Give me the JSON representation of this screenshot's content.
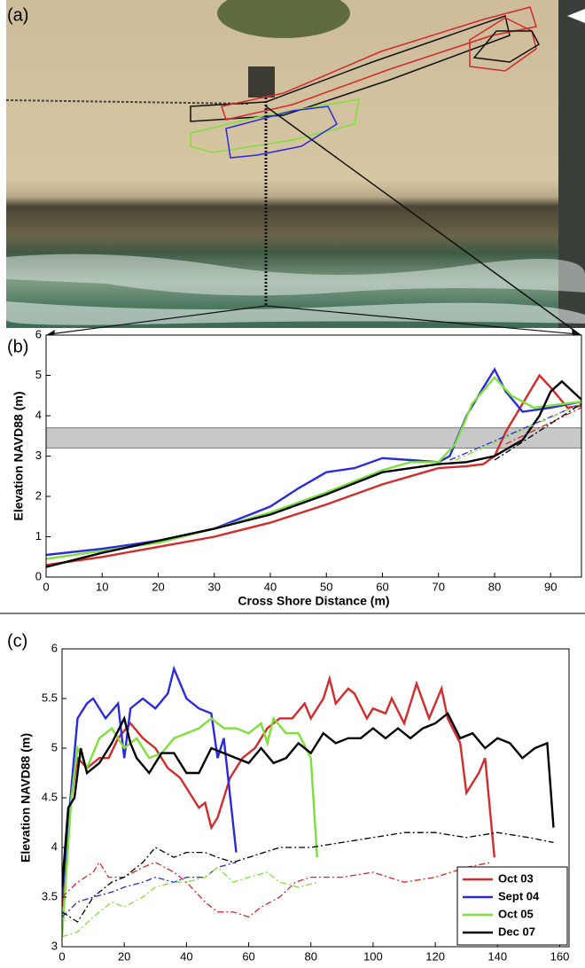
{
  "chart_data": [
    {
      "type": "image",
      "panel_label": "(a)"
    },
    {
      "type": "line",
      "panel_label": "(b)",
      "y_label": "Elevation NAVD88 (m)",
      "x_label": "Cross Shore Distance (m)",
      "xlim": [
        0,
        95.5
      ],
      "ylim": [
        0,
        6
      ],
      "xticks": [
        0,
        10,
        20,
        30,
        40,
        50,
        60,
        70,
        80,
        90
      ],
      "yticks": [
        0,
        1,
        2,
        3,
        4,
        5,
        6
      ],
      "band": [
        3.2,
        3.7
      ],
      "band_color": "#c8c8c8",
      "series": [
        {
          "color": "#d42a2a",
          "dash": false,
          "x": [
            0,
            10,
            20,
            30,
            40,
            50,
            60,
            70,
            75,
            78,
            80,
            82,
            85,
            88,
            90,
            93,
            95.5
          ],
          "values": [
            0.3,
            0.5,
            0.75,
            1.0,
            1.35,
            1.8,
            2.3,
            2.7,
            2.75,
            2.8,
            3.0,
            3.6,
            4.3,
            5.0,
            4.7,
            4.2,
            4.25
          ]
        },
        {
          "color": "#2a2ae0",
          "dash": false,
          "x": [
            0,
            10,
            20,
            30,
            40,
            45,
            50,
            55,
            60,
            65,
            70,
            72,
            75,
            78,
            80,
            82,
            85,
            90,
            95.5
          ],
          "values": [
            0.55,
            0.7,
            0.9,
            1.2,
            1.75,
            2.2,
            2.6,
            2.7,
            2.95,
            2.9,
            2.85,
            3.0,
            4.0,
            4.7,
            5.15,
            4.6,
            4.1,
            4.2,
            4.35
          ]
        },
        {
          "color": "#7ee03a",
          "dash": false,
          "x": [
            0,
            10,
            20,
            30,
            40,
            45,
            50,
            60,
            65,
            70,
            73,
            76,
            80,
            83,
            87,
            95.5
          ],
          "values": [
            0.45,
            0.65,
            0.85,
            1.2,
            1.6,
            1.85,
            2.1,
            2.65,
            2.85,
            2.85,
            3.3,
            4.3,
            4.95,
            4.5,
            4.2,
            4.35
          ]
        },
        {
          "color": "#000000",
          "dash": false,
          "x": [
            0,
            10,
            20,
            30,
            40,
            50,
            60,
            70,
            75,
            80,
            85,
            88,
            90,
            92,
            95.5
          ],
          "values": [
            0.25,
            0.6,
            0.9,
            1.2,
            1.55,
            2.05,
            2.6,
            2.8,
            2.85,
            3.0,
            3.4,
            4.0,
            4.6,
            4.85,
            4.4
          ]
        },
        {
          "color": "#d42a2a",
          "dash": true,
          "x": [
            82,
            95.5
          ],
          "values": [
            3.3,
            4.2
          ]
        },
        {
          "color": "#2a2ae0",
          "dash": true,
          "x": [
            72,
            95.5
          ],
          "values": [
            2.9,
            4.3
          ]
        },
        {
          "color": "#7ee03a",
          "dash": true,
          "x": [
            73,
            95.5
          ],
          "values": [
            2.9,
            4.3
          ]
        },
        {
          "color": "#000000",
          "dash": true,
          "x": [
            80,
            95.5
          ],
          "values": [
            2.9,
            4.3
          ]
        }
      ]
    },
    {
      "type": "line",
      "panel_label": "(c)",
      "y_label": "Elevation NAVD88 (m)",
      "x_label": "Along Berm Distance (m)",
      "xlim": [
        0,
        163
      ],
      "ylim": [
        3,
        6
      ],
      "xticks": [
        0,
        20,
        40,
        60,
        80,
        100,
        120,
        140,
        160
      ],
      "yticks": [
        3,
        3.5,
        4,
        4.5,
        5,
        5.5,
        6
      ],
      "legend": "lower right",
      "series": [
        {
          "name": "Oct 03",
          "color": "#d42a2a",
          "dash": false,
          "x": [
            0,
            3,
            5,
            8,
            12,
            15,
            18,
            22,
            26,
            30,
            34,
            38,
            42,
            44,
            46,
            48,
            50,
            54,
            58,
            62,
            66,
            70,
            74,
            78,
            80,
            84,
            86,
            88,
            92,
            94,
            98,
            100,
            104,
            106,
            110,
            112,
            114,
            118,
            122,
            124,
            128,
            130,
            134,
            136,
            139
          ],
          "values": [
            3.4,
            4.5,
            4.9,
            4.8,
            4.9,
            4.9,
            5.1,
            5.25,
            5.1,
            5.0,
            4.8,
            4.7,
            4.5,
            4.4,
            4.45,
            4.2,
            4.3,
            4.7,
            4.9,
            5.0,
            5.2,
            5.3,
            5.3,
            5.45,
            5.3,
            5.5,
            5.7,
            5.45,
            5.6,
            5.55,
            5.3,
            5.4,
            5.35,
            5.5,
            5.25,
            5.45,
            5.65,
            5.3,
            5.6,
            5.3,
            5.05,
            4.55,
            4.75,
            4.9,
            3.9
          ]
        },
        {
          "name": "Sept 04",
          "color": "#2a2ae0",
          "dash": false,
          "x": [
            0,
            3,
            5,
            8,
            10,
            14,
            18,
            20,
            22,
            26,
            30,
            34,
            36,
            40,
            44,
            48,
            50,
            52,
            56
          ],
          "values": [
            3.5,
            4.6,
            5.3,
            5.45,
            5.5,
            5.3,
            5.45,
            4.9,
            5.4,
            5.5,
            5.4,
            5.55,
            5.8,
            5.5,
            5.4,
            5.35,
            4.9,
            5.1,
            3.95
          ]
        },
        {
          "name": "Oct 05",
          "color": "#7ee03a",
          "dash": false,
          "x": [
            0,
            3,
            5,
            8,
            12,
            16,
            20,
            24,
            28,
            32,
            36,
            40,
            44,
            48,
            52,
            56,
            60,
            64,
            66,
            68,
            72,
            76,
            80,
            82
          ],
          "values": [
            3.1,
            4.5,
            5.0,
            4.8,
            5.1,
            5.2,
            5.0,
            5.1,
            4.9,
            4.95,
            5.1,
            5.15,
            5.2,
            5.3,
            5.2,
            5.2,
            5.15,
            5.25,
            5.05,
            5.3,
            5.15,
            5.15,
            4.9,
            3.9
          ]
        },
        {
          "name": "Dec 07",
          "color": "#000000",
          "dash": false,
          "x": [
            0,
            2,
            4,
            6,
            8,
            12,
            16,
            20,
            22,
            24,
            28,
            32,
            36,
            40,
            44,
            48,
            52,
            56,
            60,
            64,
            68,
            72,
            76,
            80,
            84,
            88,
            92,
            96,
            100,
            104,
            108,
            112,
            116,
            120,
            124,
            128,
            132,
            136,
            140,
            144,
            148,
            152,
            156,
            158
          ],
          "values": [
            3.6,
            4.4,
            4.5,
            5.0,
            4.75,
            4.85,
            5.05,
            5.3,
            5.05,
            4.9,
            4.75,
            4.95,
            4.95,
            4.75,
            4.75,
            5.0,
            4.95,
            4.9,
            4.85,
            5.0,
            4.85,
            4.9,
            5.05,
            4.95,
            5.15,
            5.05,
            5.1,
            5.1,
            5.2,
            5.1,
            5.2,
            5.1,
            5.2,
            5.25,
            5.35,
            5.1,
            5.15,
            5.0,
            5.1,
            5.05,
            4.9,
            5.0,
            5.05,
            4.2
          ]
        },
        {
          "color": "#d42a2a",
          "dash": true,
          "x": [
            0,
            5,
            10,
            12,
            15,
            20,
            26,
            30,
            36,
            40,
            46,
            50,
            55,
            60,
            64,
            70,
            75,
            80,
            90,
            100,
            110,
            120,
            130,
            138
          ],
          "values": [
            3.5,
            3.65,
            3.75,
            3.85,
            3.7,
            3.7,
            3.8,
            3.85,
            3.75,
            3.65,
            3.45,
            3.35,
            3.35,
            3.3,
            3.4,
            3.5,
            3.65,
            3.7,
            3.7,
            3.75,
            3.65,
            3.7,
            3.8,
            3.85
          ]
        },
        {
          "color": "#2a2ae0",
          "dash": true,
          "x": [
            0,
            5,
            10,
            16,
            20,
            26,
            30,
            36,
            40,
            46,
            50,
            56
          ],
          "values": [
            3.3,
            3.45,
            3.5,
            3.55,
            3.6,
            3.65,
            3.7,
            3.65,
            3.7,
            3.7,
            3.8,
            3.85
          ]
        },
        {
          "color": "#7ee03a",
          "dash": true,
          "x": [
            0,
            5,
            10,
            16,
            20,
            26,
            30,
            36,
            40,
            46,
            50,
            55,
            60,
            66,
            70,
            76,
            82
          ],
          "values": [
            3.1,
            3.15,
            3.3,
            3.45,
            3.4,
            3.5,
            3.6,
            3.65,
            3.65,
            3.7,
            3.8,
            3.65,
            3.7,
            3.75,
            3.65,
            3.6,
            3.65
          ]
        },
        {
          "color": "#000000",
          "dash": true,
          "x": [
            0,
            5,
            10,
            16,
            20,
            26,
            30,
            36,
            40,
            46,
            50,
            55,
            60,
            70,
            80,
            90,
            100,
            110,
            120,
            130,
            140,
            150,
            158
          ],
          "values": [
            3.35,
            3.25,
            3.5,
            3.65,
            3.7,
            3.85,
            4.0,
            3.9,
            3.95,
            3.95,
            3.9,
            3.85,
            3.9,
            4.0,
            4.0,
            4.05,
            4.1,
            4.15,
            4.15,
            4.1,
            4.15,
            4.1,
            4.05
          ]
        }
      ]
    }
  ]
}
